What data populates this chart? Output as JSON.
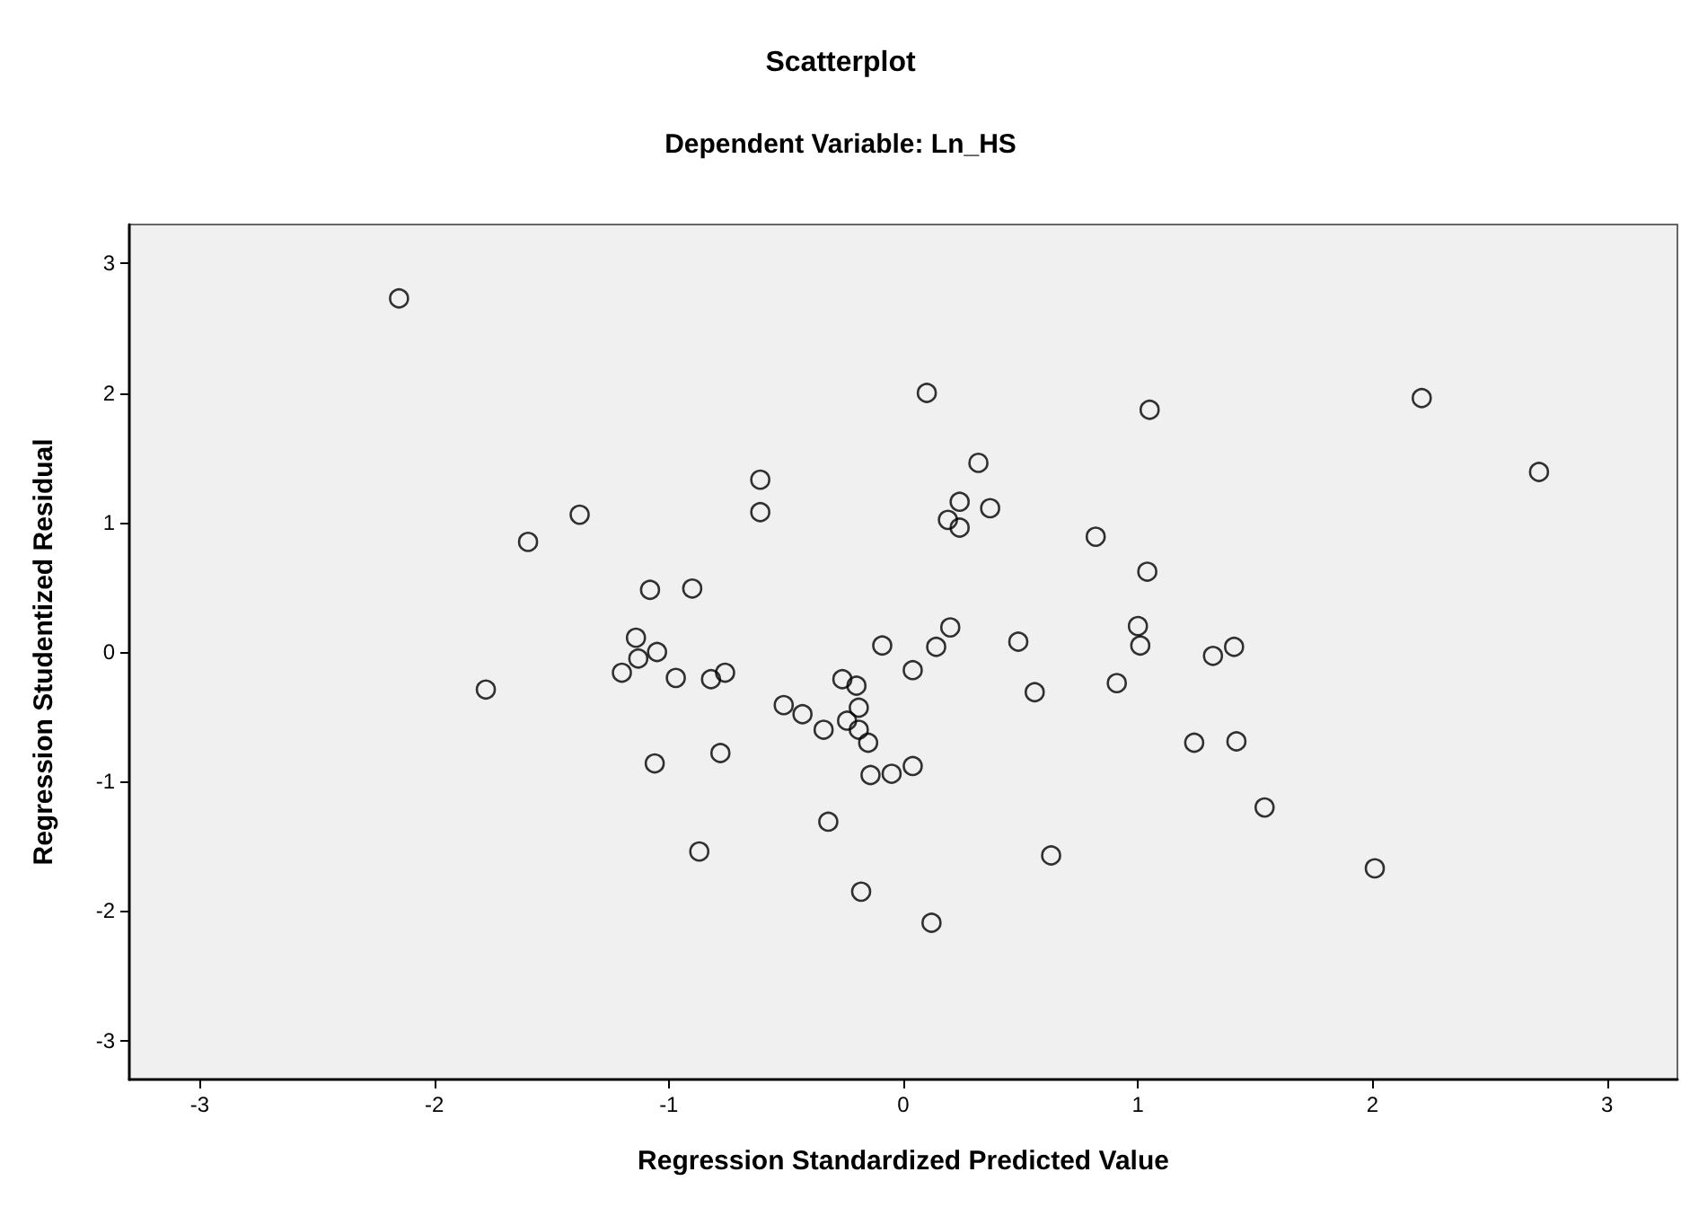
{
  "chart_data": {
    "type": "scatter",
    "title": "Scatterplot",
    "subtitle": "Dependent Variable: Ln_HS",
    "xlabel": "Regression Standardized Predicted Value",
    "ylabel": "Regression Studentized Residual",
    "xlim": [
      -3.3,
      3.3
    ],
    "ylim": [
      -3.3,
      3.3
    ],
    "xticks": [
      -3,
      -2,
      -1,
      0,
      1,
      2,
      3
    ],
    "yticks": [
      -3,
      -2,
      -1,
      0,
      1,
      2,
      3
    ],
    "marker": "circle",
    "series": [
      {
        "color": "#000000",
        "x": [
          -2.15,
          -1.38,
          -1.6,
          -1.78,
          -1.08,
          -0.9,
          -1.14,
          -1.05,
          -1.13,
          -1.2,
          -0.97,
          -0.82,
          -0.76,
          -1.06,
          -0.78,
          -0.87,
          -0.61,
          -0.61,
          -0.51,
          -0.43,
          -0.34,
          -0.32,
          -0.26,
          -0.2,
          -0.19,
          -0.24,
          -0.19,
          -0.15,
          -0.14,
          -0.18,
          -0.09,
          -0.05,
          0.04,
          0.1,
          0.04,
          0.14,
          0.2,
          0.12,
          0.32,
          0.24,
          0.19,
          0.24,
          0.37,
          0.49,
          0.56,
          0.63,
          0.82,
          1.05,
          1.04,
          1.0,
          1.01,
          0.91,
          1.24,
          1.42,
          1.32,
          1.41,
          1.54,
          2.01,
          2.21,
          2.71
        ],
        "values": [
          2.73,
          1.06,
          0.85,
          -0.29,
          0.48,
          0.49,
          0.11,
          0.0,
          -0.05,
          -0.16,
          -0.2,
          -0.21,
          -0.16,
          -0.86,
          -0.78,
          -1.54,
          1.33,
          1.08,
          -0.41,
          -0.48,
          -0.6,
          -1.31,
          -0.21,
          -0.26,
          -0.43,
          -0.53,
          -0.6,
          -0.7,
          -0.95,
          -1.85,
          0.05,
          -0.94,
          -0.88,
          2.0,
          -0.14,
          0.04,
          0.19,
          -2.09,
          1.46,
          1.16,
          1.02,
          0.96,
          1.11,
          0.08,
          -0.31,
          -1.57,
          0.89,
          1.87,
          0.62,
          0.2,
          0.05,
          -0.24,
          -0.7,
          -0.69,
          -0.03,
          0.04,
          -1.2,
          -1.67,
          1.96,
          1.39
        ]
      }
    ]
  }
}
